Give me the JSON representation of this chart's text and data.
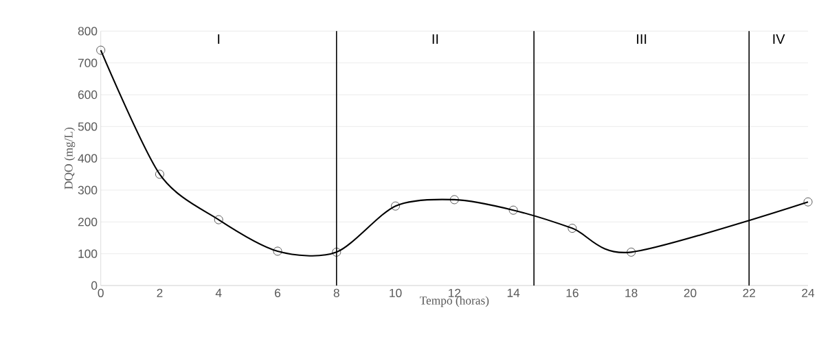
{
  "chart_data": {
    "type": "line",
    "xlabel": "Tempo (horas)",
    "ylabel": "DQO (mg/L)",
    "x": [
      0,
      2,
      4,
      6,
      8,
      10,
      12,
      14,
      16,
      18,
      24
    ],
    "values": [
      740,
      350,
      207,
      108,
      105,
      250,
      270,
      237,
      180,
      105,
      263
    ],
    "color": "#000000",
    "marker": "circle",
    "line_style": "solid",
    "grid": "y",
    "xlim": [
      0,
      24
    ],
    "xticks": [
      0,
      2,
      4,
      6,
      8,
      10,
      12,
      14,
      16,
      18,
      20,
      22,
      24
    ],
    "ylim": [
      0,
      800
    ],
    "yticks": [
      0,
      100,
      200,
      300,
      400,
      500,
      600,
      700,
      800
    ],
    "ref_lines": [
      {
        "axis": "x",
        "value": 8,
        "color": "#000000"
      },
      {
        "axis": "x",
        "value": 14.7,
        "color": "#000000"
      },
      {
        "axis": "x",
        "value": 22,
        "color": "#000000"
      }
    ],
    "annotations": [
      "I",
      "II",
      "III",
      "IV"
    ]
  }
}
